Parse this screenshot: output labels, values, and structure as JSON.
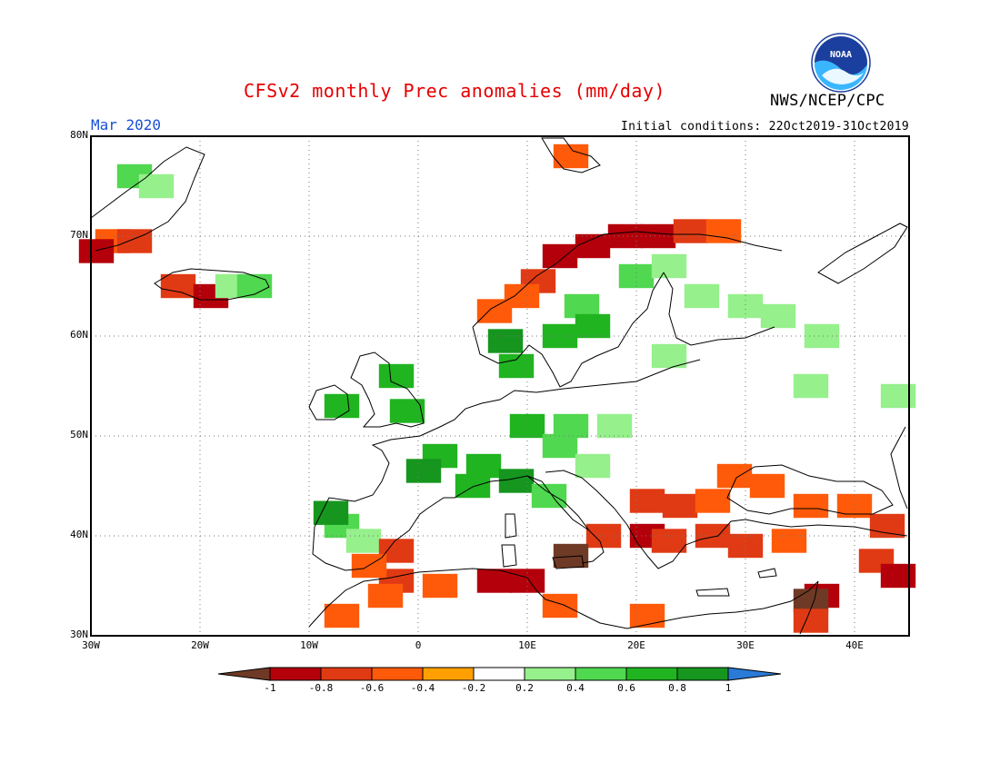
{
  "title": "CFSv2 monthly Prec anomalies (mm/day)",
  "agency": "NWS/NCEP/CPC",
  "logo_text": "NOAA",
  "valid_month": "Mar 2020",
  "initial_conditions": "Initial conditions: 22Oct2019-31Oct2019",
  "map": {
    "lon_range": [
      -30,
      45
    ],
    "lat_range": [
      30,
      80
    ],
    "lat_labels": [
      "80N",
      "70N",
      "60N",
      "50N",
      "40N",
      "30N"
    ],
    "lon_labels": [
      "30W",
      "20W",
      "10W",
      "0",
      "10E",
      "20E",
      "30E",
      "40E"
    ],
    "gridlines": "dotted",
    "anomaly_cells": [
      {
        "lon": -26,
        "lat": 76,
        "cls": 7
      },
      {
        "lon": -24,
        "lat": 75,
        "cls": 6
      },
      {
        "lon": -28,
        "lat": 69.5,
        "cls": 3
      },
      {
        "lon": -26,
        "lat": 69.5,
        "cls": 2
      },
      {
        "lon": -29.5,
        "lat": 68.5,
        "cls": 1
      },
      {
        "lon": -22,
        "lat": 65,
        "cls": 2
      },
      {
        "lon": -19,
        "lat": 64,
        "cls": 1
      },
      {
        "lon": -17,
        "lat": 65,
        "cls": 6
      },
      {
        "lon": -15,
        "lat": 65,
        "cls": 7
      },
      {
        "lon": 13,
        "lat": 68,
        "cls": 1
      },
      {
        "lon": 16,
        "lat": 69,
        "cls": 1
      },
      {
        "lon": 19,
        "lat": 70,
        "cls": 1
      },
      {
        "lon": 22,
        "lat": 70,
        "cls": 1
      },
      {
        "lon": 25,
        "lat": 70.5,
        "cls": 2
      },
      {
        "lon": 28,
        "lat": 70.5,
        "cls": 3
      },
      {
        "lon": 11,
        "lat": 65.5,
        "cls": 2
      },
      {
        "lon": 9.5,
        "lat": 64,
        "cls": 3
      },
      {
        "lon": 7,
        "lat": 62.5,
        "cls": 3
      },
      {
        "lon": 14,
        "lat": 78,
        "cls": 3
      },
      {
        "lon": 20,
        "lat": 66,
        "cls": 7
      },
      {
        "lon": 23,
        "lat": 67,
        "cls": 6
      },
      {
        "lon": 15,
        "lat": 63,
        "cls": 7
      },
      {
        "lon": 16,
        "lat": 61,
        "cls": 8
      },
      {
        "lon": 13,
        "lat": 60,
        "cls": 8
      },
      {
        "lon": 8,
        "lat": 59.5,
        "cls": 9
      },
      {
        "lon": 9,
        "lat": 57,
        "cls": 8
      },
      {
        "lon": 26,
        "lat": 64,
        "cls": 6
      },
      {
        "lon": 30,
        "lat": 63,
        "cls": 6
      },
      {
        "lon": 33,
        "lat": 62,
        "cls": 6
      },
      {
        "lon": 37,
        "lat": 60,
        "cls": 6
      },
      {
        "lon": 36,
        "lat": 55,
        "cls": 6
      },
      {
        "lon": 44,
        "lat": 54,
        "cls": 6
      },
      {
        "lon": 23,
        "lat": 58,
        "cls": 6
      },
      {
        "lon": -2,
        "lat": 56,
        "cls": 8
      },
      {
        "lon": -7,
        "lat": 53,
        "cls": 8
      },
      {
        "lon": -1,
        "lat": 52.5,
        "cls": 8
      },
      {
        "lon": 2,
        "lat": 48,
        "cls": 8
      },
      {
        "lon": 6,
        "lat": 47,
        "cls": 8
      },
      {
        "lon": 10,
        "lat": 51,
        "cls": 8
      },
      {
        "lon": 13,
        "lat": 49,
        "cls": 7
      },
      {
        "lon": 16,
        "lat": 47,
        "cls": 6
      },
      {
        "lon": 14,
        "lat": 51,
        "cls": 7
      },
      {
        "lon": 18,
        "lat": 51,
        "cls": 6
      },
      {
        "lon": 0.5,
        "lat": 46.5,
        "cls": 9
      },
      {
        "lon": 9,
        "lat": 45.5,
        "cls": 9
      },
      {
        "lon": 5,
        "lat": 45,
        "cls": 8
      },
      {
        "lon": -7,
        "lat": 41,
        "cls": 7
      },
      {
        "lon": -5,
        "lat": 39.5,
        "cls": 6
      },
      {
        "lon": -8,
        "lat": 42.3,
        "cls": 9
      },
      {
        "lon": 12,
        "lat": 44,
        "cls": 7
      },
      {
        "lon": 21,
        "lat": 43.5,
        "cls": 2
      },
      {
        "lon": 24,
        "lat": 43,
        "cls": 2
      },
      {
        "lon": 21,
        "lat": 40,
        "cls": 1
      },
      {
        "lon": 23,
        "lat": 39.5,
        "cls": 2
      },
      {
        "lon": 27,
        "lat": 43.5,
        "cls": 3
      },
      {
        "lon": 27,
        "lat": 40,
        "cls": 2
      },
      {
        "lon": 29,
        "lat": 46,
        "cls": 3
      },
      {
        "lon": 32,
        "lat": 45,
        "cls": 3
      },
      {
        "lon": 36,
        "lat": 43,
        "cls": 3
      },
      {
        "lon": 40,
        "lat": 43,
        "cls": 3
      },
      {
        "lon": 43,
        "lat": 41,
        "cls": 2
      },
      {
        "lon": 30,
        "lat": 39,
        "cls": 2
      },
      {
        "lon": 34,
        "lat": 39.5,
        "cls": 3
      },
      {
        "lon": 42,
        "lat": 37.5,
        "cls": 2
      },
      {
        "lon": 44,
        "lat": 36,
        "cls": 1
      },
      {
        "lon": 37,
        "lat": 34,
        "cls": 1
      },
      {
        "lon": 36,
        "lat": 33.5,
        "cls": 0
      },
      {
        "lon": 36,
        "lat": 31.5,
        "cls": 2
      },
      {
        "lon": 17,
        "lat": 40,
        "cls": 2
      },
      {
        "lon": 14,
        "lat": 38,
        "cls": 0
      },
      {
        "lon": 2,
        "lat": 35,
        "cls": 3
      },
      {
        "lon": -2,
        "lat": 35.5,
        "cls": 2
      },
      {
        "lon": 7,
        "lat": 35.5,
        "cls": 1
      },
      {
        "lon": 10,
        "lat": 35.5,
        "cls": 1
      },
      {
        "lon": -7,
        "lat": 32,
        "cls": 3
      },
      {
        "lon": -3,
        "lat": 34,
        "cls": 3
      },
      {
        "lon": 13,
        "lat": 33,
        "cls": 3
      },
      {
        "lon": 21,
        "lat": 32,
        "cls": 3
      },
      {
        "lon": -2,
        "lat": 38.5,
        "cls": 2
      },
      {
        "lon": -4.5,
        "lat": 37,
        "cls": 3
      }
    ]
  },
  "colorbar": {
    "labels": [
      "-1",
      "-0.8",
      "-0.6",
      "-0.4",
      "-0.2",
      "0.2",
      "0.4",
      "0.6",
      "0.8",
      "1"
    ],
    "colors": [
      "#6e3a25",
      "#b4000a",
      "#e03a14",
      "#ff5a0a",
      "#ffa000",
      "#ffffff",
      "#96f08c",
      "#50d850",
      "#20b420",
      "#16961e",
      "#2a7ad8"
    ]
  }
}
